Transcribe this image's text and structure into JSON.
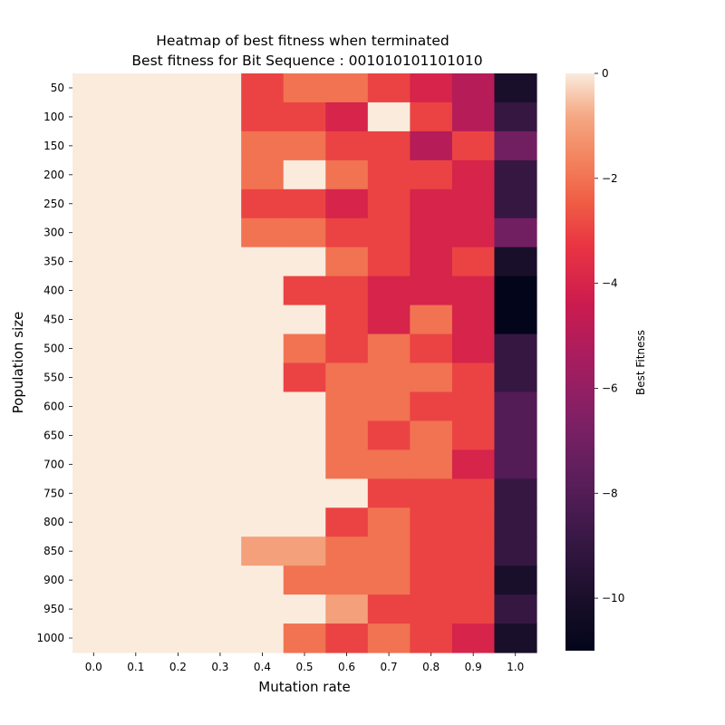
{
  "chart_data": {
    "type": "heatmap",
    "title": "Heatmap of best fitness when terminated",
    "subtitle": "Best fitness for Bit Sequence : 001010101101010",
    "xlabel": "Mutation rate",
    "ylabel": "Population size",
    "x_categories": [
      "0.0",
      "0.1",
      "0.2",
      "0.3",
      "0.4",
      "0.5",
      "0.6",
      "0.7",
      "0.8",
      "0.9",
      "1.0"
    ],
    "y_categories": [
      "50",
      "100",
      "150",
      "200",
      "250",
      "300",
      "350",
      "400",
      "450",
      "500",
      "550",
      "600",
      "650",
      "700",
      "750",
      "800",
      "850",
      "900",
      "950",
      "1000"
    ],
    "values": [
      [
        0,
        0,
        0,
        0,
        -3,
        -2,
        -2,
        -3,
        -4,
        -5,
        -10
      ],
      [
        0,
        0,
        0,
        0,
        -3,
        -3,
        -4,
        0,
        -3,
        -5,
        -9
      ],
      [
        0,
        0,
        0,
        0,
        -2,
        -2,
        -3,
        -3,
        -5,
        -3,
        -7
      ],
      [
        0,
        0,
        0,
        0,
        -2,
        0,
        -2,
        -3,
        -3,
        -4,
        -9
      ],
      [
        0,
        0,
        0,
        0,
        -3,
        -3,
        -4,
        -3,
        -4,
        -4,
        -9
      ],
      [
        0,
        0,
        0,
        0,
        -2,
        -2,
        -3,
        -3,
        -4,
        -4,
        -7
      ],
      [
        0,
        0,
        0,
        0,
        0,
        0,
        -2,
        -3,
        -4,
        -3,
        -10
      ],
      [
        0,
        0,
        0,
        0,
        0,
        -3,
        -3,
        -4,
        -4,
        -4,
        -11
      ],
      [
        0,
        0,
        0,
        0,
        0,
        0,
        -3,
        -4,
        -2,
        -4,
        -11
      ],
      [
        0,
        0,
        0,
        0,
        0,
        -2,
        -3,
        -2,
        -3,
        -4,
        -9
      ],
      [
        0,
        0,
        0,
        0,
        0,
        -3,
        -2,
        -2,
        -2,
        -3,
        -9
      ],
      [
        0,
        0,
        0,
        0,
        0,
        0,
        -2,
        -2,
        -3,
        -3,
        -8
      ],
      [
        0,
        0,
        0,
        0,
        0,
        0,
        -2,
        -3,
        -2,
        -3,
        -8
      ],
      [
        0,
        0,
        0,
        0,
        0,
        0,
        -2,
        -2,
        -2,
        -4,
        -8
      ],
      [
        0,
        0,
        0,
        0,
        0,
        0,
        0,
        -3,
        -3,
        -3,
        -9
      ],
      [
        0,
        0,
        0,
        0,
        0,
        0,
        -3,
        -2,
        -3,
        -3,
        -9
      ],
      [
        0,
        0,
        0,
        0,
        -1,
        -1,
        -2,
        -2,
        -3,
        -3,
        -9
      ],
      [
        0,
        0,
        0,
        0,
        0,
        -2,
        -2,
        -2,
        -3,
        -3,
        -10
      ],
      [
        0,
        0,
        0,
        0,
        0,
        0,
        -1,
        -3,
        -3,
        -3,
        -9
      ],
      [
        0,
        0,
        0,
        0,
        0,
        -2,
        -3,
        -2,
        -3,
        -4,
        -10
      ]
    ],
    "vmin": -11,
    "vmax": 0,
    "colormap": "rocket",
    "colorbar": {
      "label": "Best Fitness",
      "ticks": [
        0,
        -2,
        -4,
        -6,
        -8,
        -10
      ],
      "tick_labels": [
        "0",
        "−2",
        "−4",
        "−6",
        "−8",
        "−10"
      ]
    },
    "grid": false
  }
}
